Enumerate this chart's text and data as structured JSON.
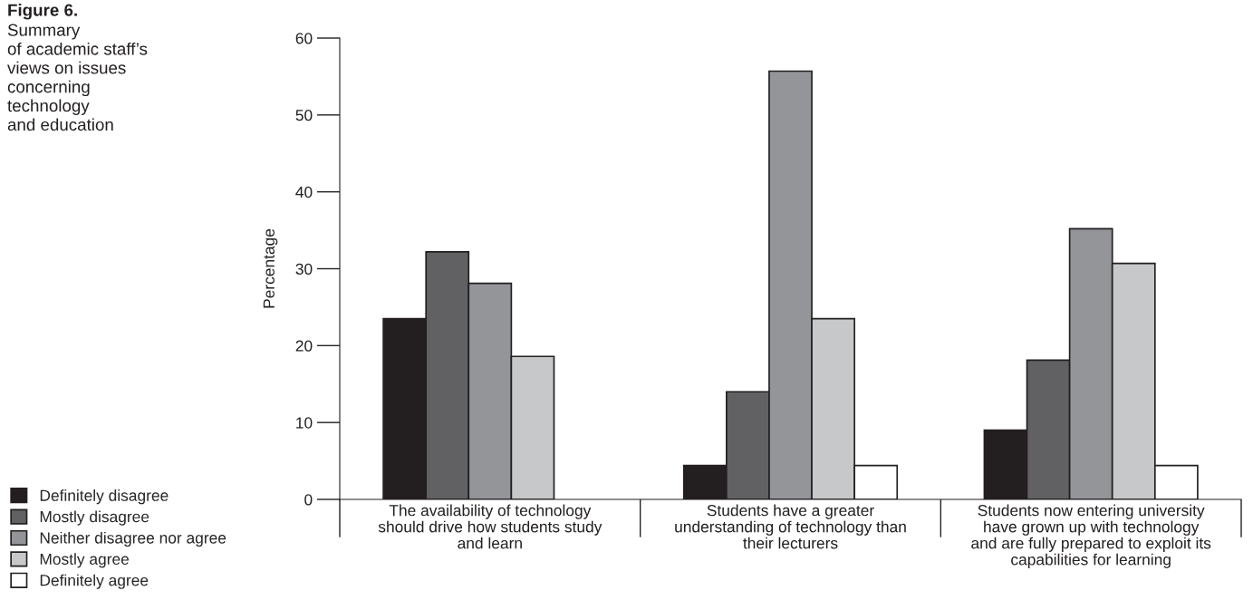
{
  "chart_data": {
    "type": "bar",
    "title": "Figure 6.",
    "subtitle": "Summary\nof academic staff’s\nviews on issues\nconcerning\ntechnology\nand education",
    "ylabel": "Percentage",
    "categories": [
      "The availability of technology\nshould drive how students study\nand learn",
      "Students have a greater\nunderstanding of technology than\ntheir lecturers",
      "Students now entering university\nhave grown up with technology\nand are fully prepared to exploit its\ncapabilities for learning"
    ],
    "series": [
      {
        "name": "Definitely disagree",
        "color": "#231f20",
        "values": [
          23.5,
          4.4,
          9.0
        ]
      },
      {
        "name": "Mostly disagree",
        "color": "#616163",
        "values": [
          32.2,
          14.0,
          18.1
        ]
      },
      {
        "name": "Neither disagree nor agree",
        "color": "#939598",
        "values": [
          28.1,
          55.7,
          35.2
        ]
      },
      {
        "name": "Mostly agree",
        "color": "#c7c8ca",
        "values": [
          18.6,
          23.5,
          30.7
        ]
      },
      {
        "name": "Definitely agree",
        "color": "#ffffff",
        "values": [
          null,
          4.4,
          4.4
        ]
      }
    ],
    "ylim": [
      0,
      60
    ],
    "yticks": [
      0,
      10,
      20,
      30,
      40,
      50,
      60
    ],
    "grid": false,
    "legend": "bottom left"
  }
}
